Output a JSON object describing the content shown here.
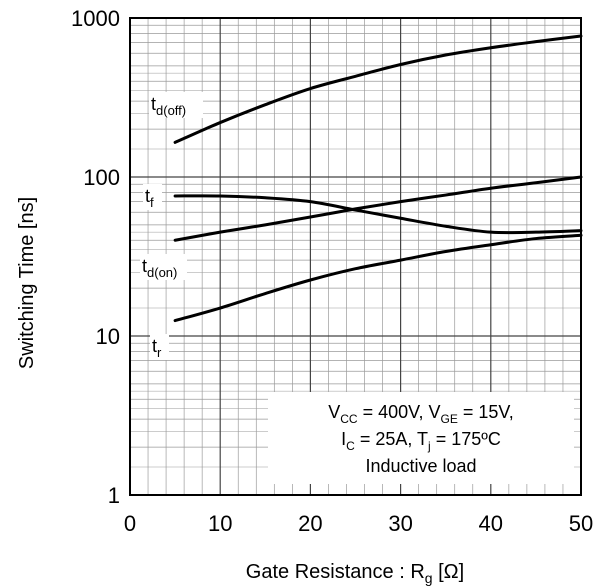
{
  "chart_data": {
    "type": "line",
    "xlabel": {
      "main": "Gate Resistance : R",
      "sub": "g",
      "unit": " [Ω]"
    },
    "ylabel": "Switching Time [ns]",
    "xlim": [
      0,
      50
    ],
    "ylim": [
      1,
      1000
    ],
    "yscale": "log",
    "grid": true,
    "x_ticks": [
      "0",
      "10",
      "20",
      "30",
      "40",
      "50"
    ],
    "y_ticks": [
      "1",
      "10",
      "100",
      "1000"
    ],
    "x_tick_values": [
      0,
      10,
      20,
      30,
      40,
      50
    ],
    "y_tick_values": [
      1,
      10,
      100,
      1000
    ],
    "x": [
      5,
      10,
      15,
      20,
      25,
      30,
      35,
      40,
      45,
      50
    ],
    "series": [
      {
        "label_main": "t",
        "label_sub": "d(off)",
        "values": [
          165,
          220,
          285,
          360,
          430,
          510,
          585,
          650,
          710,
          770
        ]
      },
      {
        "label_main": "t",
        "label_sub": "f",
        "values": [
          76,
          76,
          74,
          70,
          62,
          55,
          49,
          45,
          45,
          46
        ]
      },
      {
        "label_main": "t",
        "label_sub": "d(on)",
        "values": [
          40,
          45,
          50,
          56,
          63,
          70,
          77,
          85,
          92,
          100
        ]
      },
      {
        "label_main": "t",
        "label_sub": "r",
        "values": [
          12.5,
          15,
          18.5,
          22.5,
          26.5,
          30,
          34,
          37.5,
          41,
          43
        ]
      }
    ],
    "annotation": {
      "line1": [
        {
          "t": "V"
        },
        {
          "t": "CC",
          "sub": true
        },
        {
          "t": " = 400V, V"
        },
        {
          "t": "GE",
          "sub": true
        },
        {
          "t": " = 15V,"
        }
      ],
      "line2": [
        {
          "t": "I"
        },
        {
          "t": "C",
          "sub": true
        },
        {
          "t": " = 25A, T"
        },
        {
          "t": "j",
          "sub": true
        },
        {
          "t": " = 175ºC"
        }
      ],
      "line3": [
        {
          "t": "Inductive load"
        }
      ]
    },
    "colors": {
      "line": "#000000",
      "grid_major": "#444444",
      "grid_minor": "#9a9a9a",
      "background": "#ffffff"
    }
  }
}
